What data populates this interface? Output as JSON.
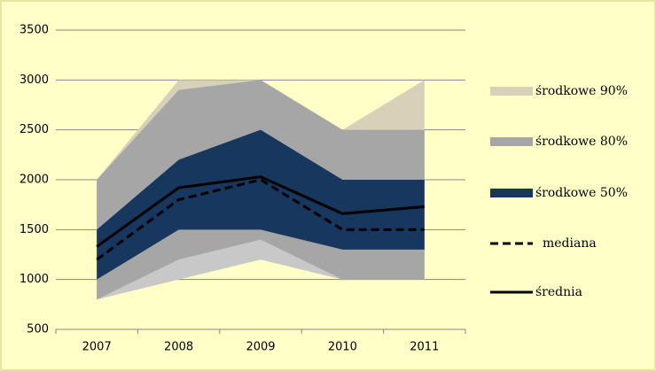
{
  "chart_data": {
    "type": "fan",
    "categories": [
      "2007",
      "2008",
      "2009",
      "2010",
      "2011"
    ],
    "ylim": [
      500,
      3500
    ],
    "yticks": [
      500,
      1000,
      1500,
      2000,
      2500,
      3000,
      3500
    ],
    "grid": true,
    "bands": [
      {
        "name": "środkowe 90%",
        "color": "#d8d0b8",
        "lower_color": "#c8c8c8",
        "upper": [
          2000,
          3000,
          3000,
          2500,
          3000
        ],
        "lower": [
          800,
          1000,
          1200,
          1000,
          1000
        ]
      },
      {
        "name": "środkowe 80%",
        "color": "#a6a6a6",
        "upper": [
          2000,
          2900,
          3000,
          2500,
          2500
        ],
        "lower": [
          800,
          1200,
          1400,
          1000,
          1000
        ]
      },
      {
        "name": "środkowe 50%",
        "color": "#17375e",
        "upper": [
          1500,
          2200,
          2500,
          2000,
          2000
        ],
        "lower": [
          1000,
          1500,
          1500,
          1300,
          1300
        ]
      }
    ],
    "series": [
      {
        "name": "mediana",
        "color": "#000000",
        "dash": true,
        "values": [
          1200,
          1800,
          2000,
          1500,
          1500
        ]
      },
      {
        "name": "średnia",
        "color": "#000000",
        "dash": false,
        "values": [
          1330,
          1920,
          2030,
          1660,
          1730
        ]
      }
    ]
  }
}
